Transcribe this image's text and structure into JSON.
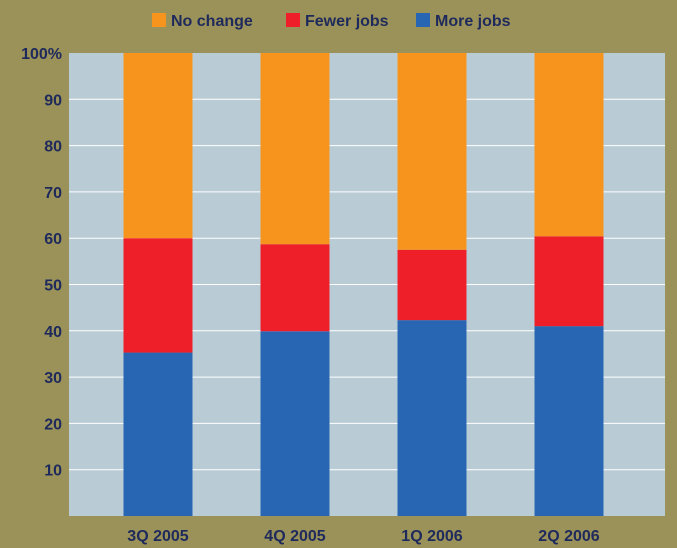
{
  "chart_data": {
    "type": "bar",
    "stacked": true,
    "categories": [
      "3Q 2005",
      "4Q 2005",
      "1Q 2006",
      "2Q 2006"
    ],
    "series": [
      {
        "name": "More jobs",
        "color": "#2866b3",
        "values": [
          35.3,
          39.9,
          42.3,
          41.0
        ]
      },
      {
        "name": "Fewer jobs",
        "color": "#ee1f28",
        "values": [
          24.7,
          18.8,
          15.2,
          19.4
        ]
      },
      {
        "name": "No change",
        "color": "#f7941d",
        "values": [
          40.0,
          41.3,
          42.5,
          39.6
        ]
      }
    ],
    "legend_order": [
      "No change",
      "Fewer jobs",
      "More jobs"
    ],
    "y_ticks": [
      "10",
      "20",
      "30",
      "40",
      "50",
      "60",
      "70",
      "80",
      "90",
      "100%"
    ],
    "ylim": [
      0,
      100
    ],
    "legend_position": "top",
    "grid": true,
    "plot_background": "#b9ccd6",
    "page_background": "#9a9258",
    "text_color": "#1f2a5c",
    "grid_color": "#ffffff"
  }
}
